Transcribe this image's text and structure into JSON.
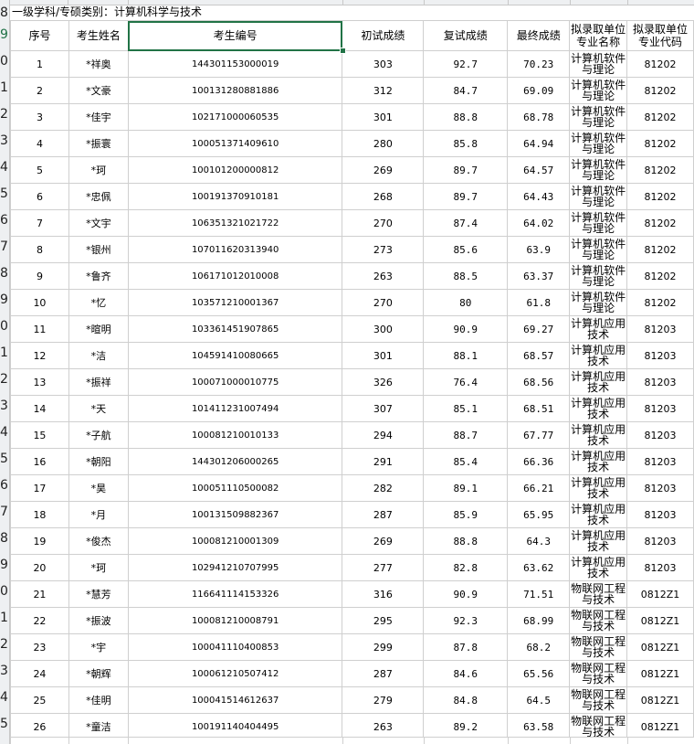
{
  "row_numbers": [
    "8",
    "9",
    "0",
    "1",
    "2",
    "3",
    "4",
    "5",
    "6",
    "7",
    "8",
    "9",
    "0",
    "1",
    "2",
    "3",
    "4",
    "5",
    "6",
    "7",
    "8",
    "9",
    "0",
    "1",
    "2",
    "3",
    "4",
    "5"
  ],
  "title": "一级学科/专硕类别：计算机科学与技术",
  "headers": {
    "seq": "序号",
    "name": "考生姓名",
    "id": "考生编号",
    "prelim": "初试成绩",
    "retest": "复试成绩",
    "final": "最终成绩",
    "major_name": "拟录取单位专业名称",
    "major_code": "拟录取单位专业代码"
  },
  "rows": [
    {
      "seq": "1",
      "name": "*祥奥",
      "id": "144301153000019",
      "prelim": "303",
      "retest": "92.7",
      "final": "70.23",
      "major_name": "计算机软件与理论",
      "major_code": "81202"
    },
    {
      "seq": "2",
      "name": "*文豪",
      "id": "100131280881886",
      "prelim": "312",
      "retest": "84.7",
      "final": "69.09",
      "major_name": "计算机软件与理论",
      "major_code": "81202"
    },
    {
      "seq": "3",
      "name": "*佳宇",
      "id": "102171000060535",
      "prelim": "301",
      "retest": "88.8",
      "final": "68.78",
      "major_name": "计算机软件与理论",
      "major_code": "81202"
    },
    {
      "seq": "4",
      "name": "*振寰",
      "id": "100051371409610",
      "prelim": "280",
      "retest": "85.8",
      "final": "64.94",
      "major_name": "计算机软件与理论",
      "major_code": "81202"
    },
    {
      "seq": "5",
      "name": "*珂",
      "id": "100101200000812",
      "prelim": "269",
      "retest": "89.7",
      "final": "64.57",
      "major_name": "计算机软件与理论",
      "major_code": "81202"
    },
    {
      "seq": "6",
      "name": "*忠佩",
      "id": "100191370910181",
      "prelim": "268",
      "retest": "89.7",
      "final": "64.43",
      "major_name": "计算机软件与理论",
      "major_code": "81202"
    },
    {
      "seq": "7",
      "name": "*文宇",
      "id": "106351321021722",
      "prelim": "270",
      "retest": "87.4",
      "final": "64.02",
      "major_name": "计算机软件与理论",
      "major_code": "81202"
    },
    {
      "seq": "8",
      "name": "*银州",
      "id": "107011620313940",
      "prelim": "273",
      "retest": "85.6",
      "final": "63.9",
      "major_name": "计算机软件与理论",
      "major_code": "81202"
    },
    {
      "seq": "9",
      "name": "*鲁齐",
      "id": "106171012010008",
      "prelim": "263",
      "retest": "88.5",
      "final": "63.37",
      "major_name": "计算机软件与理论",
      "major_code": "81202"
    },
    {
      "seq": "10",
      "name": "*忆",
      "id": "103571210001367",
      "prelim": "270",
      "retest": "80",
      "final": "61.8",
      "major_name": "计算机软件与理论",
      "major_code": "81202"
    },
    {
      "seq": "11",
      "name": "*暄明",
      "id": "103361451907865",
      "prelim": "300",
      "retest": "90.9",
      "final": "69.27",
      "major_name": "计算机应用技术",
      "major_code": "81203"
    },
    {
      "seq": "12",
      "name": "*洁",
      "id": "104591410080665",
      "prelim": "301",
      "retest": "88.1",
      "final": "68.57",
      "major_name": "计算机应用技术",
      "major_code": "81203"
    },
    {
      "seq": "13",
      "name": "*振祥",
      "id": "100071000010775",
      "prelim": "326",
      "retest": "76.4",
      "final": "68.56",
      "major_name": "计算机应用技术",
      "major_code": "81203"
    },
    {
      "seq": "14",
      "name": "*天",
      "id": "101411231007494",
      "prelim": "307",
      "retest": "85.1",
      "final": "68.51",
      "major_name": "计算机应用技术",
      "major_code": "81203"
    },
    {
      "seq": "15",
      "name": "*子航",
      "id": "100081210010133",
      "prelim": "294",
      "retest": "88.7",
      "final": "67.77",
      "major_name": "计算机应用技术",
      "major_code": "81203"
    },
    {
      "seq": "16",
      "name": "*朝阳",
      "id": "144301206000265",
      "prelim": "291",
      "retest": "85.4",
      "final": "66.36",
      "major_name": "计算机应用技术",
      "major_code": "81203"
    },
    {
      "seq": "17",
      "name": "*昊",
      "id": "100051110500082",
      "prelim": "282",
      "retest": "89.1",
      "final": "66.21",
      "major_name": "计算机应用技术",
      "major_code": "81203"
    },
    {
      "seq": "18",
      "name": "*月",
      "id": "100131509882367",
      "prelim": "287",
      "retest": "85.9",
      "final": "65.95",
      "major_name": "计算机应用技术",
      "major_code": "81203"
    },
    {
      "seq": "19",
      "name": "*俊杰",
      "id": "100081210001309",
      "prelim": "269",
      "retest": "88.8",
      "final": "64.3",
      "major_name": "计算机应用技术",
      "major_code": "81203"
    },
    {
      "seq": "20",
      "name": "*珂",
      "id": "102941210707995",
      "prelim": "277",
      "retest": "82.8",
      "final": "63.62",
      "major_name": "计算机应用技术",
      "major_code": "81203"
    },
    {
      "seq": "21",
      "name": "*慧芳",
      "id": "116641114153326",
      "prelim": "316",
      "retest": "90.9",
      "final": "71.51",
      "major_name": "物联网工程与技术",
      "major_code": "0812Z1"
    },
    {
      "seq": "22",
      "name": "*振波",
      "id": "100081210008791",
      "prelim": "295",
      "retest": "92.3",
      "final": "68.99",
      "major_name": "物联网工程与技术",
      "major_code": "0812Z1"
    },
    {
      "seq": "23",
      "name": "*宇",
      "id": "100041110400853",
      "prelim": "299",
      "retest": "87.8",
      "final": "68.2",
      "major_name": "物联网工程与技术",
      "major_code": "0812Z1"
    },
    {
      "seq": "24",
      "name": "*朝辉",
      "id": "100061210507412",
      "prelim": "287",
      "retest": "84.6",
      "final": "65.56",
      "major_name": "物联网工程与技术",
      "major_code": "0812Z1"
    },
    {
      "seq": "25",
      "name": "*佳明",
      "id": "100041514612637",
      "prelim": "279",
      "retest": "84.8",
      "final": "64.5",
      "major_name": "物联网工程与技术",
      "major_code": "0812Z1"
    },
    {
      "seq": "26",
      "name": "*童洁",
      "id": "100191140404495",
      "prelim": "263",
      "retest": "89.2",
      "final": "63.58",
      "major_name": "物联网工程与技术",
      "major_code": "0812Z1"
    }
  ]
}
